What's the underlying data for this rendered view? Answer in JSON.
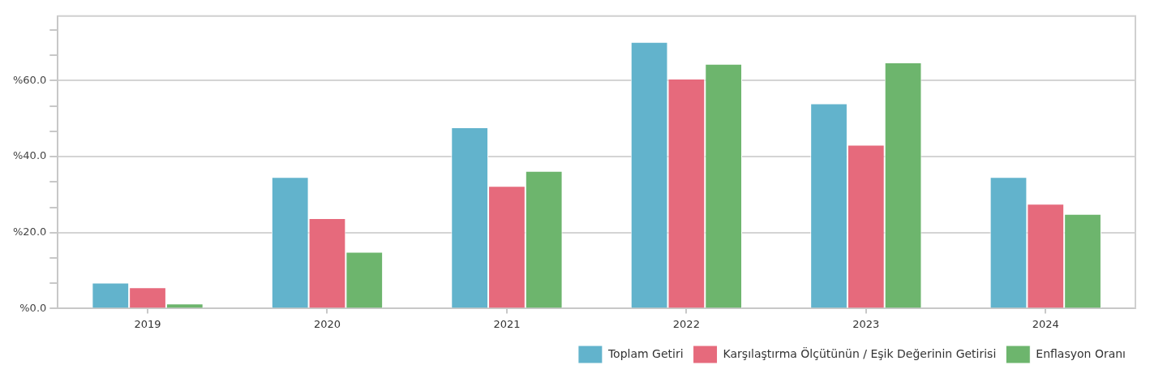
{
  "chart_data": {
    "type": "bar",
    "categories": [
      "2019",
      "2020",
      "2021",
      "2022",
      "2023",
      "2024"
    ],
    "series": [
      {
        "name": "Toplam Getiri",
        "color": "#62b3cc",
        "values": [
          6.8,
          34.6,
          47.7,
          70.2,
          54.0,
          34.6
        ]
      },
      {
        "name": "Karşılaştırma Ölçütünün / Eşik Değerinin Getirisi",
        "color": "#e66a7c",
        "values": [
          5.6,
          23.8,
          32.3,
          60.5,
          43.1,
          27.6
        ]
      },
      {
        "name": "Enflasyon Oranı",
        "color": "#6db56d",
        "values": [
          1.3,
          14.9,
          36.2,
          64.4,
          64.8,
          24.9
        ]
      }
    ],
    "ylim": [
      0,
      77
    ],
    "yticks": [
      {
        "value": 0,
        "label": "%0.0"
      },
      {
        "value": 6.67,
        "label": null
      },
      {
        "value": 13.33,
        "label": null
      },
      {
        "value": 20,
        "label": "%20.0"
      },
      {
        "value": 26.67,
        "label": null
      },
      {
        "value": 33.33,
        "label": null
      },
      {
        "value": 40,
        "label": "%40.0"
      },
      {
        "value": 46.67,
        "label": null
      },
      {
        "value": 53.33,
        "label": null
      },
      {
        "value": 60,
        "label": "%60.0"
      },
      {
        "value": 66.67,
        "label": null
      },
      {
        "value": 73.33,
        "label": null
      }
    ],
    "grid": "y",
    "legend": "bottom right"
  }
}
